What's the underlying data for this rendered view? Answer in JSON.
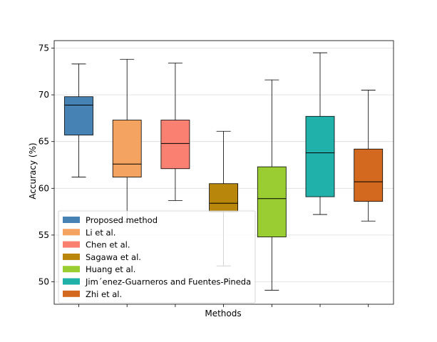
{
  "chart_data": {
    "type": "box",
    "title": "",
    "xlabel": "Methods",
    "ylabel": "Accuracy (%)",
    "ylim": [
      47.6,
      75.8
    ],
    "yticks": [
      50,
      55,
      60,
      65,
      70,
      75
    ],
    "ytick_labels": [
      "50",
      "55",
      "60",
      "65",
      "70",
      "75"
    ],
    "grid": true,
    "legend_position": "lower-left",
    "series": [
      {
        "name": "Proposed method",
        "color": "#4682b4",
        "whisker_low": 61.2,
        "q1": 65.7,
        "median": 68.9,
        "q3": 69.8,
        "whisker_high": 73.3
      },
      {
        "name": "Li et al.",
        "color": "#f4a460",
        "whisker_low": 56.4,
        "q1": 61.2,
        "median": 62.6,
        "q3": 67.3,
        "whisker_high": 73.8
      },
      {
        "name": "Chen et al.",
        "color": "#fa8072",
        "whisker_low": 58.7,
        "q1": 62.1,
        "median": 64.8,
        "q3": 67.3,
        "whisker_high": 73.4
      },
      {
        "name": "Sagawa et al.",
        "color": "#b8860b",
        "whisker_low": 51.7,
        "q1": 57.5,
        "median": 58.4,
        "q3": 60.5,
        "whisker_high": 66.1
      },
      {
        "name": "Huang et al.",
        "color": "#9acd32",
        "whisker_low": 49.1,
        "q1": 54.8,
        "median": 58.9,
        "q3": 62.3,
        "whisker_high": 71.6
      },
      {
        "name": "Jim´enez-Guarneros and Fuentes-Pineda",
        "color": "#20b2aa",
        "whisker_low": 57.2,
        "q1": 59.1,
        "median": 63.8,
        "q3": 67.7,
        "whisker_high": 74.5
      },
      {
        "name": "Zhi et al.",
        "color": "#d2691e",
        "whisker_low": 56.5,
        "q1": 58.6,
        "median": 60.7,
        "q3": 64.2,
        "whisker_high": 70.5
      }
    ]
  }
}
